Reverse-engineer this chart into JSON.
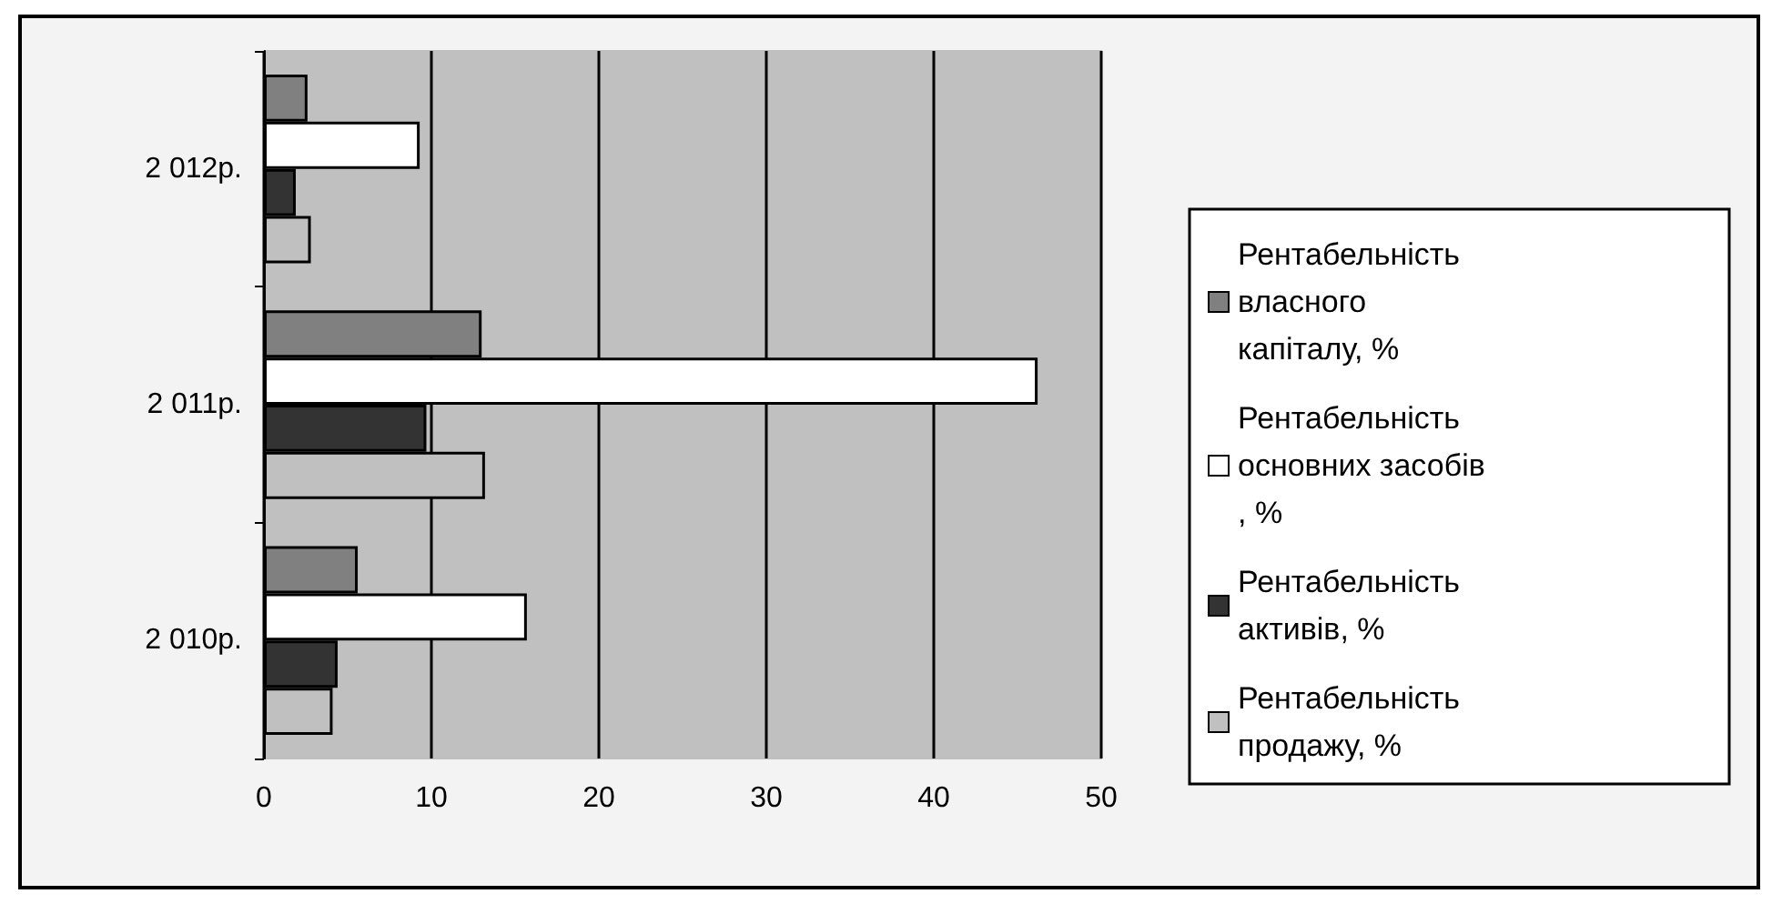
{
  "chart_data": {
    "type": "bar",
    "orientation": "horizontal",
    "categories": [
      "2 012р.",
      "2 011р.",
      "2 010р."
    ],
    "series": [
      {
        "name": "Рентабельність власного капіталу, %",
        "color": "#808080",
        "values": [
          2.6,
          13.0,
          5.6
        ]
      },
      {
        "name": "Рентабельність основних засобів, %",
        "color": "#ffffff",
        "values": [
          9.3,
          46.2,
          15.7
        ]
      },
      {
        "name": "Рентабельність  активів, %",
        "color": "#333333",
        "values": [
          1.9,
          9.7,
          4.4
        ]
      },
      {
        "name": "Рентабельність продажу, %",
        "color": "#c0c0c0",
        "values": [
          2.8,
          13.2,
          4.1
        ]
      }
    ],
    "xlim": [
      0,
      50
    ],
    "xticks": [
      0,
      10,
      20,
      30,
      40,
      50
    ],
    "grid": "x",
    "legend": "right"
  }
}
